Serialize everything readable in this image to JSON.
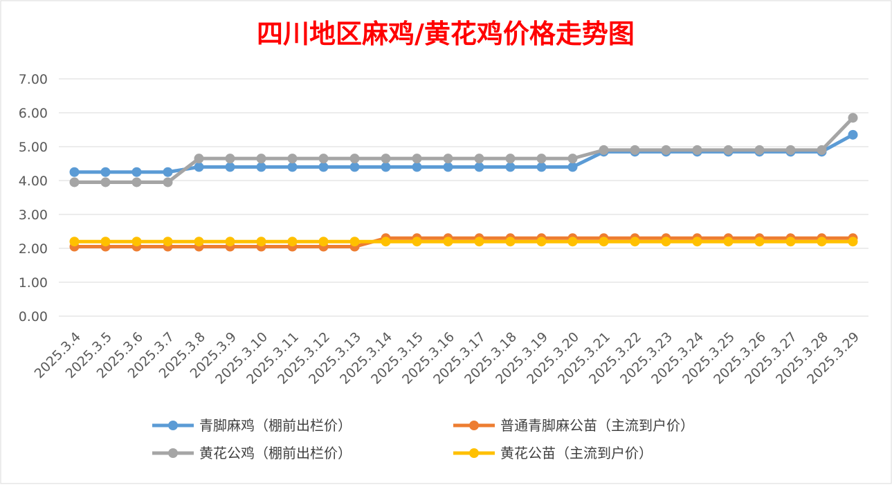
{
  "chart_data": {
    "type": "line",
    "title": "四川地区麻鸡/黄花鸡价格走势图",
    "title_color": "#ff0000",
    "xlabel": "",
    "ylabel": "",
    "ylim": [
      0,
      7
    ],
    "yticks": [
      "0.00",
      "1.00",
      "2.00",
      "3.00",
      "4.00",
      "5.00",
      "6.00",
      "7.00"
    ],
    "grid": true,
    "legend_position": "bottom",
    "categories": [
      "2025.3.4",
      "2025.3.5",
      "2025.3.6",
      "2025.3.7",
      "2025.3.8",
      "2025.3.9",
      "2025.3.10",
      "2025.3.11",
      "2025.3.12",
      "2025.3.13",
      "2025.3.14",
      "2025.3.15",
      "2025.3.16",
      "2025.3.17",
      "2025.3.18",
      "2025.3.19",
      "2025.3.20",
      "2025.3.21",
      "2025.3.22",
      "2025.3.23",
      "2025.3.24",
      "2025.3.25",
      "2025.3.26",
      "2025.3.27",
      "2025.3.28",
      "2025.3.29"
    ],
    "series": [
      {
        "name": "普通青脚麻公苗（主流到户价）",
        "color": "#ed7d31",
        "values": [
          2.05,
          2.05,
          2.05,
          2.05,
          2.05,
          2.05,
          2.05,
          2.05,
          2.05,
          2.05,
          2.3,
          2.3,
          2.3,
          2.3,
          2.3,
          2.3,
          2.3,
          2.3,
          2.3,
          2.3,
          2.3,
          2.3,
          2.3,
          2.3,
          2.3,
          2.3
        ]
      },
      {
        "name": "黄花公苗（主流到户价）",
        "color": "#ffc000",
        "values": [
          2.2,
          2.2,
          2.2,
          2.2,
          2.2,
          2.2,
          2.2,
          2.2,
          2.2,
          2.2,
          2.2,
          2.2,
          2.2,
          2.2,
          2.2,
          2.2,
          2.2,
          2.2,
          2.2,
          2.2,
          2.2,
          2.2,
          2.2,
          2.2,
          2.2,
          2.2
        ]
      },
      {
        "name": "青脚麻鸡（棚前出栏价）",
        "color": "#5b9bd5",
        "values": [
          4.25,
          4.25,
          4.25,
          4.25,
          4.4,
          4.4,
          4.4,
          4.4,
          4.4,
          4.4,
          4.4,
          4.4,
          4.4,
          4.4,
          4.4,
          4.4,
          4.4,
          4.85,
          4.85,
          4.85,
          4.85,
          4.85,
          4.85,
          4.85,
          4.85,
          5.35
        ]
      },
      {
        "name": "黄花公鸡（棚前出栏价）",
        "color": "#a5a5a5",
        "values": [
          3.95,
          3.95,
          3.95,
          3.95,
          4.65,
          4.65,
          4.65,
          4.65,
          4.65,
          4.65,
          4.65,
          4.65,
          4.65,
          4.65,
          4.65,
          4.65,
          4.65,
          4.9,
          4.9,
          4.9,
          4.9,
          4.9,
          4.9,
          4.9,
          4.9,
          5.85
        ]
      }
    ],
    "legend": [
      {
        "name": "青脚麻鸡（棚前出栏价）",
        "color": "#5b9bd5"
      },
      {
        "name": "普通青脚麻公苗（主流到户价）",
        "color": "#ed7d31"
      },
      {
        "name": "黄花公鸡（棚前出栏价）",
        "color": "#a5a5a5"
      },
      {
        "name": "黄花公苗（主流到户价）",
        "color": "#ffc000"
      }
    ]
  }
}
